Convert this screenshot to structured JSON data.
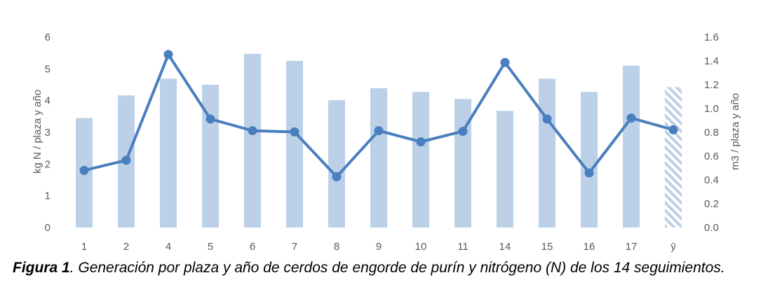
{
  "chart_data": {
    "type": "bar",
    "categories": [
      "1",
      "2",
      "4",
      "5",
      "6",
      "7",
      "8",
      "9",
      "10",
      "11",
      "14",
      "15",
      "16",
      "17",
      "ȳ"
    ],
    "series": [
      {
        "axis": "right",
        "mark": "bar",
        "values": [
          0.92,
          1.11,
          1.25,
          1.2,
          1.46,
          1.4,
          1.07,
          1.17,
          1.14,
          1.08,
          0.98,
          1.25,
          1.14,
          1.36,
          1.18
        ],
        "color": "#bcd0e8",
        "hatched_last": true
      },
      {
        "axis": "left",
        "mark": "line",
        "values": [
          1.8,
          2.12,
          5.45,
          3.42,
          3.05,
          3.01,
          1.6,
          3.05,
          2.7,
          3.03,
          5.2,
          3.42,
          1.72,
          3.45,
          3.08
        ],
        "color": "#4a7fbf"
      }
    ],
    "ylabel": "kg N / plaza y año",
    "y2label": "m3 / plaza y año",
    "ylim": [
      0,
      6
    ],
    "y_ticks": [
      "0",
      "1",
      "2",
      "3",
      "4",
      "5",
      "6"
    ],
    "y2lim": [
      0,
      1.6
    ],
    "y2_ticks": [
      "0.0",
      "0.2",
      "0.4",
      "0.6",
      "0.8",
      "1.0",
      "1.2",
      "1.4",
      "1.6"
    ],
    "grid": false
  },
  "caption": {
    "label": "Figura 1",
    "text": ". Generación por plaza y año de cerdos de engorde de purín y nitrógeno (N) de los 14 seguimientos."
  }
}
